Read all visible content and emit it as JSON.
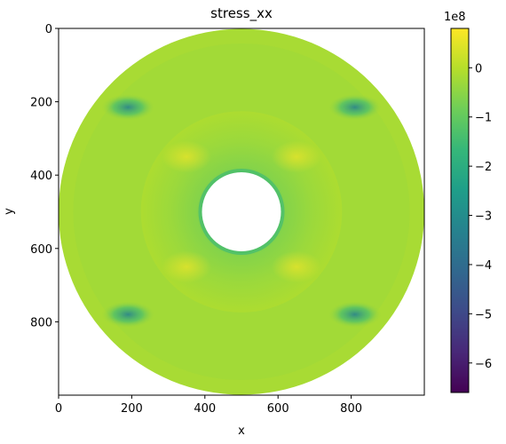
{
  "chart_data": {
    "type": "heatmap",
    "title": "stress_xx",
    "xlabel": "x",
    "ylabel": "y",
    "xlim": [
      0,
      1000
    ],
    "ylim": [
      1000,
      0
    ],
    "x_ticks": [
      0,
      200,
      400,
      600,
      800
    ],
    "y_ticks": [
      0,
      200,
      400,
      600,
      800
    ],
    "colorbar": {
      "colormap": "viridis",
      "colors": [
        "#440154",
        "#482878",
        "#3e4a89",
        "#31688e",
        "#26828e",
        "#1f9e89",
        "#35b779",
        "#6ece58",
        "#b5de2b",
        "#fde725"
      ],
      "multiplier_label": "1e8",
      "range": [
        -6.6,
        0.8
      ],
      "ticks": [
        0,
        -1,
        -2,
        -3,
        -4,
        -5,
        -6
      ],
      "tick_labels": [
        "0",
        "−1",
        "−2",
        "−3",
        "−4",
        "−5",
        "−6"
      ]
    },
    "field": {
      "description_values": {
        "center": [
          500,
          500
        ],
        "outer_radius": 500,
        "inner_radius": 108,
        "dominant_value": -0.3,
        "value_near_hole": -1.9,
        "value_band_between": -0.9,
        "lightest_value": 0.5,
        "hotspots": [
          {
            "x": 190,
            "y": 215,
            "value": -2.6
          },
          {
            "x": 810,
            "y": 215,
            "value": -2.6
          },
          {
            "x": 190,
            "y": 780,
            "value": -2.6
          },
          {
            "x": 810,
            "y": 780,
            "value": -2.6
          }
        ]
      }
    }
  }
}
